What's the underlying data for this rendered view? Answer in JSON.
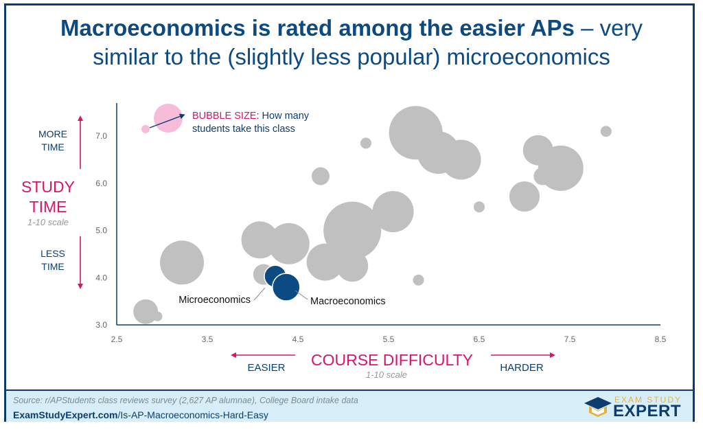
{
  "title": {
    "bold": "Macroeconomics is rated among the easier APs",
    "rest_line1": " – very",
    "line2": "similar to the (slightly less popular) microeconomics"
  },
  "y_axis": {
    "title_line1": "STUDY",
    "title_line2": "TIME",
    "scale": "1-10 scale",
    "more_line1": "MORE",
    "more_line2": "TIME",
    "less_line1": "LESS",
    "less_line2": "TIME"
  },
  "x_axis": {
    "title": "COURSE DIFFICULTY",
    "scale": "1-10 scale",
    "easier": "EASIER",
    "harder": "HARDER"
  },
  "legend": {
    "bold": "BUBBLE SIZE",
    "text_line1": ": How many",
    "text_line2": "students take this class"
  },
  "annotations": {
    "micro": "Microeconomics",
    "macro": "Macroeconomics"
  },
  "colors": {
    "title": "#0b4a82",
    "accent": "#d6156c",
    "bubble": "#c0c0c0",
    "highlight": "#0b4a82",
    "axis": "#0b3d6e",
    "legend_bubble": "#f6bcd9"
  },
  "chart_data": {
    "type": "scatter",
    "xlim": [
      2.5,
      8.5
    ],
    "ylim": [
      3.0,
      7.7
    ],
    "x_ticks": [
      "2.5",
      "3.5",
      "4.5",
      "5.5",
      "6.5",
      "7.5",
      "8.5"
    ],
    "y_ticks": [
      "3.0",
      "4.0",
      "5.0",
      "6.0",
      "7.0"
    ],
    "points": [
      {
        "x": 5.8,
        "y": 7.07,
        "size": 39
      },
      {
        "x": 6.05,
        "y": 6.65,
        "size": 31
      },
      {
        "x": 6.3,
        "y": 6.5,
        "size": 29
      },
      {
        "x": 7.15,
        "y": 6.7,
        "size": 22
      },
      {
        "x": 7.4,
        "y": 6.32,
        "size": 33
      },
      {
        "x": 7.2,
        "y": 6.15,
        "size": 13
      },
      {
        "x": 7.9,
        "y": 7.1,
        "size": 8
      },
      {
        "x": 5.25,
        "y": 6.85,
        "size": 8
      },
      {
        "x": 4.75,
        "y": 6.15,
        "size": 13
      },
      {
        "x": 6.5,
        "y": 5.5,
        "size": 8
      },
      {
        "x": 7.0,
        "y": 5.72,
        "size": 22
      },
      {
        "x": 5.55,
        "y": 5.4,
        "size": 30
      },
      {
        "x": 5.1,
        "y": 5.0,
        "size": 42
      },
      {
        "x": 4.8,
        "y": 4.33,
        "size": 27
      },
      {
        "x": 5.1,
        "y": 4.25,
        "size": 23
      },
      {
        "x": 4.08,
        "y": 4.8,
        "size": 27
      },
      {
        "x": 4.4,
        "y": 4.72,
        "size": 30
      },
      {
        "x": 3.22,
        "y": 4.32,
        "size": 32
      },
      {
        "x": 4.12,
        "y": 4.07,
        "size": 15
      },
      {
        "x": 5.83,
        "y": 3.95,
        "size": 8
      },
      {
        "x": 2.82,
        "y": 3.28,
        "size": 18
      },
      {
        "x": 2.95,
        "y": 3.18,
        "size": 7
      },
      {
        "x": 4.25,
        "y": 4.03,
        "size": 16,
        "highlight": true,
        "label": "Microeconomics"
      },
      {
        "x": 4.37,
        "y": 3.8,
        "size": 20,
        "highlight": true,
        "label": "Macroeconomics"
      }
    ]
  },
  "footer": {
    "source": "Source: r/APStudents class reviews survey (2,627 AP alumnae), College Board intake data",
    "url_bold": "ExamStudyExpert.com",
    "url_rest": "/Is-AP-Macroeconomics-Hard-Easy"
  },
  "logo": {
    "top": "EXAM STUDY",
    "main": "EXPERT"
  }
}
